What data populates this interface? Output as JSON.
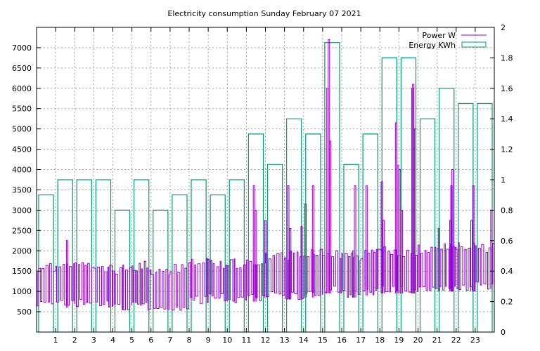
{
  "chart_data": {
    "type": "line",
    "title": "Electricity consumption Sunday February 07 2021",
    "xlabel": "",
    "ylabel": "",
    "y2label": "",
    "x_range": [
      0,
      24
    ],
    "x_ticks": [
      1,
      2,
      3,
      4,
      5,
      6,
      7,
      8,
      9,
      10,
      11,
      12,
      13,
      14,
      15,
      16,
      17,
      18,
      19,
      20,
      21,
      22,
      23
    ],
    "y_range": [
      0,
      7500
    ],
    "y_ticks": [
      500,
      1000,
      1500,
      2000,
      2500,
      3000,
      3500,
      4000,
      4500,
      5000,
      5500,
      6000,
      6500,
      7000
    ],
    "y2_range": [
      0,
      2
    ],
    "y2_ticks": [
      "0",
      "0.2",
      "0.4",
      "0.6",
      "0.8",
      "1",
      "1.2",
      "1.4",
      "1.6",
      "1.8",
      "2"
    ],
    "grid": true,
    "legend_position": "top-right",
    "series": [
      {
        "name": "Power W",
        "style": "line",
        "axis": "y1",
        "color": "#9400d3",
        "segments": [
          {
            "start": 0,
            "end": 1,
            "low": 600,
            "high": 1700
          },
          {
            "start": 1,
            "end": 2,
            "low": 600,
            "high": 1750
          },
          {
            "start": 2,
            "end": 3,
            "low": 620,
            "high": 1750
          },
          {
            "start": 3,
            "end": 4,
            "low": 600,
            "high": 1700
          },
          {
            "start": 4,
            "end": 5,
            "low": 500,
            "high": 1650
          },
          {
            "start": 5,
            "end": 6,
            "low": 550,
            "high": 1750
          },
          {
            "start": 6,
            "end": 7,
            "low": 500,
            "high": 1650
          },
          {
            "start": 7,
            "end": 8,
            "low": 500,
            "high": 1700
          },
          {
            "start": 8,
            "end": 9,
            "low": 700,
            "high": 1850
          },
          {
            "start": 9,
            "end": 10,
            "low": 750,
            "high": 1800
          },
          {
            "start": 10,
            "end": 11,
            "low": 700,
            "high": 1800
          },
          {
            "start": 11,
            "end": 12,
            "low": 750,
            "high": 1900
          },
          {
            "start": 12,
            "end": 13,
            "low": 850,
            "high": 2000
          },
          {
            "start": 13,
            "end": 14,
            "low": 800,
            "high": 2000
          },
          {
            "start": 14,
            "end": 15,
            "low": 850,
            "high": 2050
          },
          {
            "start": 15,
            "end": 16,
            "low": 950,
            "high": 2050
          },
          {
            "start": 16,
            "end": 17,
            "low": 850,
            "high": 2000
          },
          {
            "start": 17,
            "end": 18,
            "low": 900,
            "high": 2050
          },
          {
            "start": 18,
            "end": 19,
            "low": 950,
            "high": 2100
          },
          {
            "start": 19,
            "end": 20,
            "low": 950,
            "high": 2100
          },
          {
            "start": 20,
            "end": 21,
            "low": 950,
            "high": 2150
          },
          {
            "start": 21,
            "end": 22,
            "low": 1000,
            "high": 2200
          },
          {
            "start": 22,
            "end": 23,
            "low": 1000,
            "high": 2250
          },
          {
            "start": 23,
            "end": 24,
            "low": 1050,
            "high": 2200
          }
        ],
        "spikes": [
          {
            "x": 1.6,
            "y": 2250
          },
          {
            "x": 11.4,
            "y": 3600
          },
          {
            "x": 11.5,
            "y": 3000
          },
          {
            "x": 12.0,
            "y": 2750
          },
          {
            "x": 13.2,
            "y": 3600
          },
          {
            "x": 13.3,
            "y": 2550
          },
          {
            "x": 13.9,
            "y": 2600
          },
          {
            "x": 14.1,
            "y": 3150
          },
          {
            "x": 14.5,
            "y": 3600
          },
          {
            "x": 15.25,
            "y": 6000
          },
          {
            "x": 15.33,
            "y": 7200
          },
          {
            "x": 15.4,
            "y": 4700
          },
          {
            "x": 16.6,
            "y": 2000
          },
          {
            "x": 16.7,
            "y": 3600
          },
          {
            "x": 17.3,
            "y": 3600
          },
          {
            "x": 18.1,
            "y": 3700
          },
          {
            "x": 18.2,
            "y": 2750
          },
          {
            "x": 18.85,
            "y": 5150
          },
          {
            "x": 18.95,
            "y": 4100
          },
          {
            "x": 19.05,
            "y": 4000
          },
          {
            "x": 19.15,
            "y": 3000
          },
          {
            "x": 19.7,
            "y": 6000
          },
          {
            "x": 19.75,
            "y": 6100
          },
          {
            "x": 19.85,
            "y": 5000
          },
          {
            "x": 21.1,
            "y": 2550
          },
          {
            "x": 21.7,
            "y": 2750
          },
          {
            "x": 21.75,
            "y": 3600
          },
          {
            "x": 21.8,
            "y": 4000
          },
          {
            "x": 22.8,
            "y": 2750
          },
          {
            "x": 22.9,
            "y": 3600
          },
          {
            "x": 23.85,
            "y": 3000
          }
        ]
      },
      {
        "name": "Energy KWh",
        "style": "steps",
        "axis": "y2",
        "color": "#009e73",
        "x": [
          0,
          1,
          2,
          3,
          4,
          5,
          6,
          7,
          8,
          9,
          10,
          11,
          12,
          13,
          14,
          15,
          16,
          17,
          18,
          19,
          20,
          21,
          22,
          23
        ],
        "values": [
          0.9,
          1.0,
          1.0,
          1.0,
          0.8,
          1.0,
          0.8,
          0.9,
          1.0,
          0.9,
          1.0,
          1.3,
          1.1,
          1.4,
          1.3,
          1.9,
          1.1,
          1.3,
          1.8,
          1.8,
          1.4,
          1.6,
          1.5,
          1.5
        ]
      }
    ]
  }
}
